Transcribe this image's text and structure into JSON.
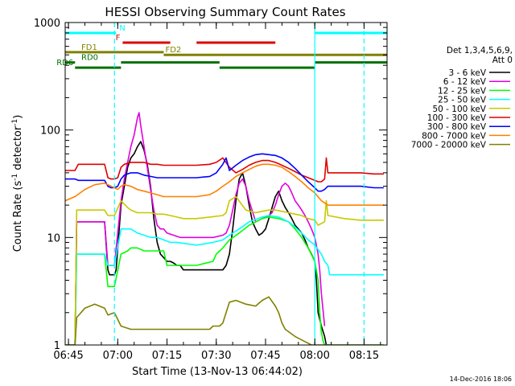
{
  "chart_data": {
    "type": "line",
    "title": "HESSI Observing Summary Count Rates",
    "xlabel": "Start Time (13-Nov-13 06:44:02)",
    "ylabel": "Count Rate (s⁻¹ detector⁻¹)",
    "ylabel_parts": [
      "Count Rate (s",
      "-1",
      " detector",
      "-1",
      ")"
    ],
    "footer": "14-Dec-2016 18:06",
    "x_unit": "minutes after 06:44:02",
    "xlim": [
      0,
      98
    ],
    "ylim": [
      1,
      1000
    ],
    "yscale": "log",
    "x_ticks": [
      {
        "x": 1,
        "label": "06:45"
      },
      {
        "x": 16,
        "label": "07:00"
      },
      {
        "x": 31,
        "label": "07:15"
      },
      {
        "x": 46,
        "label": "07:30"
      },
      {
        "x": 61,
        "label": "07:45"
      },
      {
        "x": 76,
        "label": "08:00"
      },
      {
        "x": 91,
        "label": "08:15"
      }
    ],
    "y_ticks": [
      {
        "y": 1,
        "label": "1"
      },
      {
        "y": 10,
        "label": "10"
      },
      {
        "y": 100,
        "label": "100"
      },
      {
        "y": 1000,
        "label": "1000"
      }
    ],
    "legend_title": [
      "Det 1,3,4,5,6,9,",
      "Att 0"
    ],
    "legend_position": "right",
    "series": [
      {
        "name": "3 - 6 keV",
        "color": "#000000",
        "x": [
          0,
          3,
          3.5,
          12,
          13,
          13.5,
          15,
          15.5,
          17,
          18,
          19,
          20,
          21,
          22,
          23,
          24,
          25,
          26,
          27,
          28,
          29,
          30,
          31,
          32,
          33,
          34,
          35,
          36,
          37,
          38,
          39,
          40,
          42,
          44,
          46,
          48,
          49,
          50,
          51,
          52,
          53,
          54,
          55,
          56,
          57,
          58,
          59,
          60,
          61,
          62,
          63,
          64,
          65,
          66,
          67,
          68,
          69,
          70,
          71,
          72,
          73,
          74,
          75,
          76,
          76.5,
          77,
          78,
          79,
          79.5,
          80,
          80.5
        ],
        "y": [
          1,
          1,
          14,
          14,
          5,
          4.5,
          4.5,
          5,
          20,
          30,
          45,
          55,
          60,
          70,
          78,
          65,
          48,
          30,
          15,
          9,
          7,
          6.5,
          6,
          6,
          5.8,
          5.5,
          5.5,
          5,
          5,
          5,
          5,
          5,
          5,
          5,
          5,
          5,
          5.5,
          7,
          12,
          22,
          35,
          40,
          30,
          20,
          14,
          12,
          10.5,
          11,
          12,
          15,
          19,
          24,
          27,
          22,
          19,
          17,
          15,
          13,
          12,
          11,
          9.5,
          8,
          7,
          6,
          4,
          2,
          1.5,
          1.2,
          1,
          1,
          1
        ]
      },
      {
        "name": "6 - 12 keV",
        "color": "#e000e0",
        "x": [
          0,
          3,
          3.5,
          12,
          13,
          15,
          17,
          18,
          19,
          20,
          21,
          22,
          22.5,
          23,
          24,
          25,
          26,
          27,
          28,
          29,
          30,
          31,
          33,
          35,
          40,
          45,
          48,
          49,
          50,
          51,
          52,
          53,
          54,
          55,
          56,
          58,
          60,
          62,
          63,
          64,
          65,
          66,
          67,
          68,
          69,
          70,
          71,
          72,
          73,
          74,
          75,
          76,
          77,
          77.5,
          78,
          79
        ],
        "y": [
          1,
          1,
          14,
          14,
          5.5,
          5.5,
          22,
          35,
          50,
          70,
          90,
          130,
          145,
          110,
          70,
          45,
          28,
          18,
          13,
          12,
          12,
          11,
          10.5,
          10,
          10,
          10,
          10.5,
          11,
          13,
          18,
          25,
          32,
          35,
          30,
          22,
          14,
          15,
          16,
          17,
          20,
          25,
          30,
          32,
          30,
          26,
          22,
          20,
          18,
          16,
          14,
          12,
          10,
          7,
          5,
          3,
          1.5
        ]
      },
      {
        "name": "12 - 25 keV",
        "color": "#00ff00",
        "x": [
          0,
          3,
          3.5,
          12,
          13,
          15,
          17,
          19,
          20,
          22,
          24,
          26,
          28,
          30,
          31,
          40,
          45,
          46,
          48,
          50,
          53,
          56,
          60,
          62,
          65,
          68,
          70,
          72,
          74,
          76,
          77,
          77.5,
          78,
          78.5,
          79,
          80,
          81,
          82,
          83,
          84,
          85,
          86,
          87,
          88,
          89,
          90,
          91,
          92,
          93,
          94,
          95,
          96,
          97
        ],
        "y": [
          1,
          1,
          7,
          7,
          3.5,
          3.5,
          7,
          7.5,
          8,
          8,
          7.5,
          7.5,
          7.5,
          7.5,
          5.5,
          5.5,
          6,
          7,
          8,
          9.5,
          11,
          13,
          15,
          15.5,
          15,
          14,
          12,
          10,
          8,
          6,
          4,
          2,
          1.3,
          1.1,
          1,
          1,
          1,
          1,
          1,
          1,
          1,
          1,
          1,
          1,
          1,
          1,
          1,
          1,
          1,
          1,
          1,
          1,
          1
        ]
      },
      {
        "name": "25 - 50 keV",
        "color": "#00ffff",
        "x": [
          0,
          3,
          3.5,
          12,
          13,
          15,
          17,
          20,
          22,
          24,
          26,
          28,
          30,
          32,
          34,
          40,
          45,
          48,
          50,
          53,
          56,
          60,
          62,
          65,
          68,
          70,
          72,
          74,
          76,
          78,
          79,
          80,
          80.5,
          90,
          97
        ],
        "y": [
          1,
          1,
          7,
          7,
          5.5,
          5.5,
          12,
          12,
          11,
          10.5,
          10,
          10,
          9.5,
          9,
          9,
          8.5,
          9,
          9.5,
          10.5,
          12,
          14,
          15.5,
          16,
          15.5,
          14,
          12.5,
          11,
          9.5,
          8.5,
          7,
          6,
          5.5,
          4.5,
          4.5,
          4.5
        ]
      },
      {
        "name": "50 - 100 keV",
        "color": "#c8c800",
        "x": [
          0,
          3,
          3.5,
          12,
          13,
          15,
          17,
          19,
          20,
          22,
          24,
          26,
          28,
          30,
          32,
          34,
          36,
          40,
          44,
          48,
          49,
          50,
          52,
          55,
          58,
          60,
          62,
          64,
          66,
          68,
          70,
          72,
          74,
          76,
          77,
          78,
          79,
          79.5,
          80,
          85,
          90,
          94,
          97
        ],
        "y": [
          1,
          1,
          18,
          18,
          16,
          16,
          22,
          19,
          18,
          17,
          17,
          17,
          16.5,
          16.5,
          16,
          15.5,
          15,
          15,
          15.5,
          16,
          17,
          22,
          24,
          18,
          17,
          17.5,
          18,
          18,
          17.5,
          17,
          16.5,
          16,
          15,
          14.5,
          13,
          13.5,
          14,
          22,
          16,
          15,
          14.5,
          14.5,
          14.5
        ]
      },
      {
        "name": "100 - 300 keV",
        "color": "#e00000",
        "x": [
          0,
          3,
          4,
          12,
          13,
          14,
          15,
          16,
          17,
          18,
          20,
          22,
          24,
          26,
          28,
          30,
          32,
          35,
          40,
          44,
          46,
          48,
          50,
          52,
          54,
          56,
          58,
          60,
          62,
          64,
          66,
          68,
          70,
          72,
          74,
          76,
          77,
          78,
          79,
          79.5,
          80,
          82,
          85,
          90,
          94,
          97
        ],
        "y": [
          42,
          42,
          48,
          48,
          36,
          35,
          35,
          36,
          45,
          48,
          50,
          50,
          50,
          48,
          48,
          47,
          47,
          47,
          47,
          48,
          50,
          55,
          45,
          40,
          43,
          47,
          50,
          52,
          52,
          50,
          47,
          44,
          41,
          38,
          36,
          34,
          33,
          33,
          35,
          55,
          40,
          40,
          40,
          40,
          39,
          39
        ]
      },
      {
        "name": "300 - 800 keV",
        "color": "#0000ff",
        "x": [
          0,
          3,
          4,
          12,
          13,
          14,
          15,
          16,
          17,
          18,
          20,
          22,
          24,
          26,
          28,
          30,
          32,
          35,
          40,
          44,
          46,
          48,
          49,
          50,
          52,
          54,
          56,
          58,
          60,
          62,
          64,
          66,
          68,
          70,
          72,
          74,
          76,
          77,
          78,
          79,
          80,
          82,
          85,
          90,
          94,
          97
        ],
        "y": [
          35,
          35,
          34,
          34,
          30,
          29,
          29,
          30,
          35,
          38,
          40,
          40,
          38,
          37,
          36,
          36,
          36,
          36,
          36,
          37,
          40,
          48,
          55,
          42,
          47,
          52,
          56,
          59,
          60,
          59,
          58,
          55,
          50,
          44,
          38,
          33,
          29,
          27,
          27,
          28,
          30,
          30,
          30,
          30,
          29,
          29
        ]
      },
      {
        "name": "800 - 7000 keV",
        "color": "#ff8000",
        "x": [
          0,
          3,
          6,
          9,
          12,
          14,
          15,
          16,
          17,
          18,
          20,
          22,
          24,
          26,
          28,
          30,
          32,
          35,
          40,
          44,
          46,
          48,
          50,
          52,
          54,
          56,
          58,
          60,
          62,
          64,
          66,
          68,
          70,
          72,
          74,
          76,
          78,
          79,
          80,
          82,
          85,
          90,
          94,
          97
        ],
        "y": [
          22,
          24,
          28,
          31,
          32,
          30,
          29,
          28,
          30,
          31,
          30,
          28,
          27,
          26,
          25,
          24,
          24,
          24,
          24,
          25,
          27,
          30,
          33,
          37,
          40,
          43,
          46,
          48,
          48,
          47,
          45,
          41,
          37,
          33,
          29,
          26,
          22,
          21,
          20,
          20,
          20,
          20,
          20,
          20
        ]
      },
      {
        "name": "7000 - 20000 keV",
        "color": "#808000",
        "x": [
          0,
          3,
          3.5,
          6,
          9,
          12,
          13,
          15,
          17,
          20,
          25,
          30,
          40,
          44,
          45,
          46,
          47,
          48,
          49,
          50,
          52,
          55,
          58,
          60,
          62,
          64,
          65,
          66,
          67,
          70,
          75,
          76,
          77,
          78,
          79,
          80,
          85,
          90,
          97
        ],
        "y": [
          1,
          1,
          1.8,
          2.2,
          2.4,
          2.2,
          1.9,
          2,
          1.5,
          1.4,
          1.4,
          1.4,
          1.4,
          1.4,
          1.5,
          1.5,
          1.5,
          1.6,
          2,
          2.5,
          2.6,
          2.4,
          2.3,
          2.6,
          2.8,
          2.3,
          2,
          1.6,
          1.4,
          1.2,
          1,
          1,
          1,
          1,
          1,
          1,
          1,
          1,
          1
        ]
      }
    ],
    "state_bars": [
      {
        "name": "N",
        "color": "#00ffff",
        "y": 800,
        "segments": [
          [
            0,
            15.5
          ],
          [
            76,
            98
          ]
        ]
      },
      {
        "name": "F",
        "color": "#e00000",
        "y": 650,
        "segments": [
          [
            17.5,
            32
          ],
          [
            40,
            64
          ]
        ]
      },
      {
        "name": "FD1",
        "color": "#808000",
        "y": 530,
        "segments": [
          [
            0,
            30
          ]
        ]
      },
      {
        "name": "FD2",
        "color": "#808000",
        "y": 500,
        "segments": [
          [
            30,
            98
          ]
        ]
      },
      {
        "name": "RD0",
        "color": "#007000",
        "y": 425,
        "segments": [
          [
            0,
            3
          ],
          [
            17,
            47
          ],
          [
            76,
            98
          ]
        ]
      },
      {
        "name": "RD6",
        "color": "#007000",
        "y": 380,
        "segments": [
          [
            3,
            17
          ],
          [
            47,
            76
          ]
        ]
      }
    ],
    "eclipse_marks": [
      {
        "x": 15,
        "color": "#00ffff"
      },
      {
        "x": 91,
        "color": "#00ffff"
      }
    ]
  }
}
